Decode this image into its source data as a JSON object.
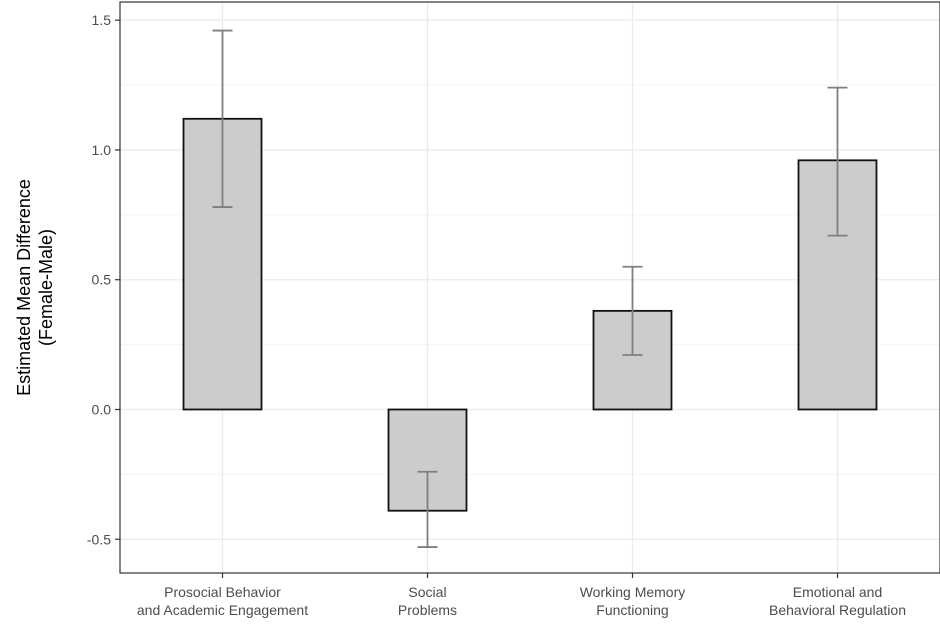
{
  "chart_data": {
    "type": "bar",
    "title": "",
    "xlabel": "",
    "ylabel_lines": [
      "Estimated Mean Difference",
      "(Female-Male)"
    ],
    "categories": [
      [
        "Prosocial Behavior",
        "and Academic Engagement"
      ],
      [
        "Social",
        "Problems"
      ],
      [
        "Working Memory",
        "Functioning"
      ],
      [
        "Emotional and",
        "Behavioral Regulation"
      ]
    ],
    "values": [
      1.12,
      -0.39,
      0.38,
      0.96
    ],
    "error_low": [
      0.78,
      -0.53,
      0.21,
      0.67
    ],
    "error_high": [
      1.46,
      -0.24,
      0.55,
      1.24
    ],
    "ylim": [
      -0.63,
      1.57
    ],
    "yticks": [
      -0.5,
      0.0,
      0.5,
      1.0,
      1.5
    ],
    "ytick_labels": [
      "-0.5",
      "0.0",
      "0.5",
      "1.0",
      "1.5"
    ],
    "grid": true,
    "colors": {
      "bar_fill": "#cccccc",
      "bar_stroke": "#111111",
      "error_bar": "#7f7f7f",
      "grid_major": "#ebebeb",
      "grid_minor": "#f5f5f5",
      "panel_border": "#333333"
    }
  }
}
